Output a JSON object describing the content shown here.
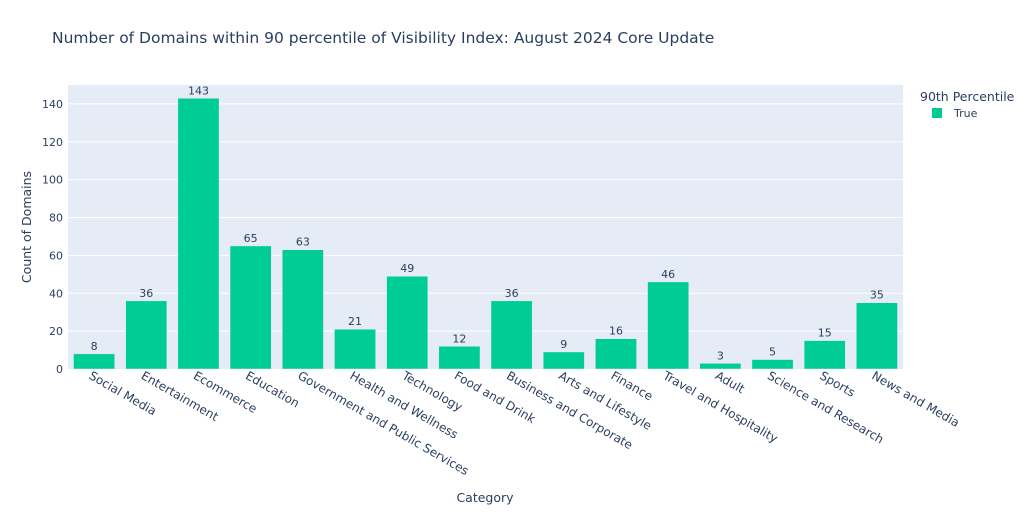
{
  "chart_data": {
    "type": "bar",
    "title": "Number of Domains within 90 percentile of Visibility Index: August 2024 Core Update",
    "xlabel": "Category",
    "ylabel": "Count of Domains",
    "ylim": [
      0,
      150
    ],
    "yticks": [
      0,
      20,
      40,
      60,
      80,
      100,
      120,
      140
    ],
    "grid": true,
    "legend": {
      "title": "90th Percentile",
      "position": "top-right",
      "entries": [
        {
          "name": "True",
          "color": "#00cc96"
        }
      ]
    },
    "series": [
      {
        "name": "True",
        "color": "#00cc96",
        "values": [
          8,
          36,
          143,
          65,
          63,
          21,
          49,
          12,
          36,
          9,
          16,
          46,
          3,
          5,
          15,
          35
        ]
      }
    ],
    "categories": [
      "Social Media",
      "Entertainment",
      "Ecommerce",
      "Education",
      "Government and Public Services",
      "Health and Wellness",
      "Technology",
      "Food and Drink",
      "Business and Corporate",
      "Arts and Lifestyle",
      "Finance",
      "Travel and Hospitality",
      "Adult",
      "Science and Research",
      "Sports",
      "News and Media"
    ],
    "colors": {
      "plot_background": "#e5ecf6",
      "grid": "#ffffff",
      "text": "#2a3f5f"
    }
  }
}
